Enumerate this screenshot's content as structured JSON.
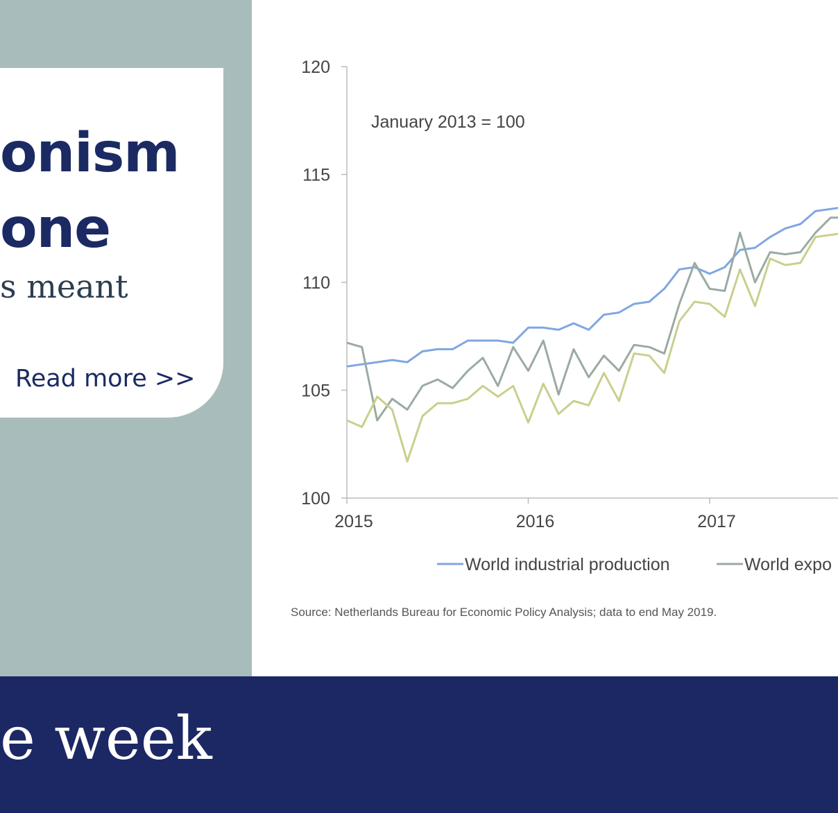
{
  "teaser": {
    "headline_line1": "onism",
    "headline_line2": "one",
    "standfirst": "s meant",
    "read_more": "Read more >>"
  },
  "banner": {
    "text": "e week"
  },
  "chart_data": {
    "type": "line",
    "annotation": "January 2013 = 100",
    "source": "Source: Netherlands Bureau for Economic Policy Analysis; data to end May 2019.",
    "ylim": [
      100,
      120
    ],
    "yticks": [
      100,
      105,
      110,
      115,
      120
    ],
    "xticks": [
      "2015",
      "2016",
      "2017"
    ],
    "xlim": [
      2015.0,
      2017.8
    ],
    "grid": false,
    "legend_position": "bottom",
    "series": [
      {
        "name": "World industrial production",
        "color": "#7fa6e3",
        "x": [
          2015.0,
          2015.083,
          2015.167,
          2015.25,
          2015.333,
          2015.417,
          2015.5,
          2015.583,
          2015.667,
          2015.75,
          2015.833,
          2015.917,
          2016.0,
          2016.083,
          2016.167,
          2016.25,
          2016.333,
          2016.417,
          2016.5,
          2016.583,
          2016.667,
          2016.75,
          2016.833,
          2016.917,
          2017.0,
          2017.083,
          2017.167,
          2017.25,
          2017.333,
          2017.417,
          2017.5,
          2017.583,
          2017.667,
          2017.75,
          2017.8
        ],
        "values": [
          106.1,
          106.2,
          106.3,
          106.4,
          106.3,
          106.8,
          106.9,
          106.9,
          107.3,
          107.3,
          107.3,
          107.2,
          107.9,
          107.9,
          107.8,
          108.1,
          107.8,
          108.5,
          108.6,
          109.0,
          109.1,
          109.7,
          110.6,
          110.7,
          110.4,
          110.7,
          111.5,
          111.6,
          112.1,
          112.5,
          112.7,
          113.3,
          113.4,
          113.5,
          113.5
        ]
      },
      {
        "name": "World expo",
        "color": "#9aaba0",
        "x": [
          2015.0,
          2015.083,
          2015.167,
          2015.25,
          2015.333,
          2015.417,
          2015.5,
          2015.583,
          2015.667,
          2015.75,
          2015.833,
          2015.917,
          2016.0,
          2016.083,
          2016.167,
          2016.25,
          2016.333,
          2016.417,
          2016.5,
          2016.583,
          2016.667,
          2016.75,
          2016.833,
          2016.917,
          2017.0,
          2017.083,
          2017.167,
          2017.25,
          2017.333,
          2017.417,
          2017.5,
          2017.583,
          2017.667,
          2017.75,
          2017.8
        ],
        "values": [
          107.2,
          107.0,
          103.6,
          104.6,
          104.1,
          105.2,
          105.5,
          105.1,
          105.9,
          106.5,
          105.2,
          107.0,
          105.9,
          107.3,
          104.8,
          106.9,
          105.6,
          106.6,
          105.9,
          107.1,
          107.0,
          106.7,
          109.0,
          110.9,
          109.7,
          109.6,
          112.3,
          110.0,
          111.4,
          111.3,
          111.4,
          112.3,
          113.0,
          113.0,
          113.0
        ]
      },
      {
        "name": "",
        "color": "#c9cf8c",
        "x": [
          2015.0,
          2015.083,
          2015.167,
          2015.25,
          2015.333,
          2015.417,
          2015.5,
          2015.583,
          2015.667,
          2015.75,
          2015.833,
          2015.917,
          2016.0,
          2016.083,
          2016.167,
          2016.25,
          2016.333,
          2016.417,
          2016.5,
          2016.583,
          2016.667,
          2016.75,
          2016.833,
          2016.917,
          2017.0,
          2017.083,
          2017.167,
          2017.25,
          2017.333,
          2017.417,
          2017.5,
          2017.583,
          2017.667,
          2017.75,
          2017.8
        ],
        "values": [
          103.6,
          103.3,
          104.7,
          104.1,
          101.7,
          103.8,
          104.4,
          104.4,
          104.6,
          105.2,
          104.7,
          105.2,
          103.5,
          105.3,
          103.9,
          104.5,
          104.3,
          105.8,
          104.5,
          106.7,
          106.6,
          105.8,
          108.2,
          109.1,
          109.0,
          108.4,
          110.6,
          108.9,
          111.1,
          110.8,
          110.9,
          112.1,
          112.2,
          112.3,
          112.3
        ]
      }
    ]
  }
}
